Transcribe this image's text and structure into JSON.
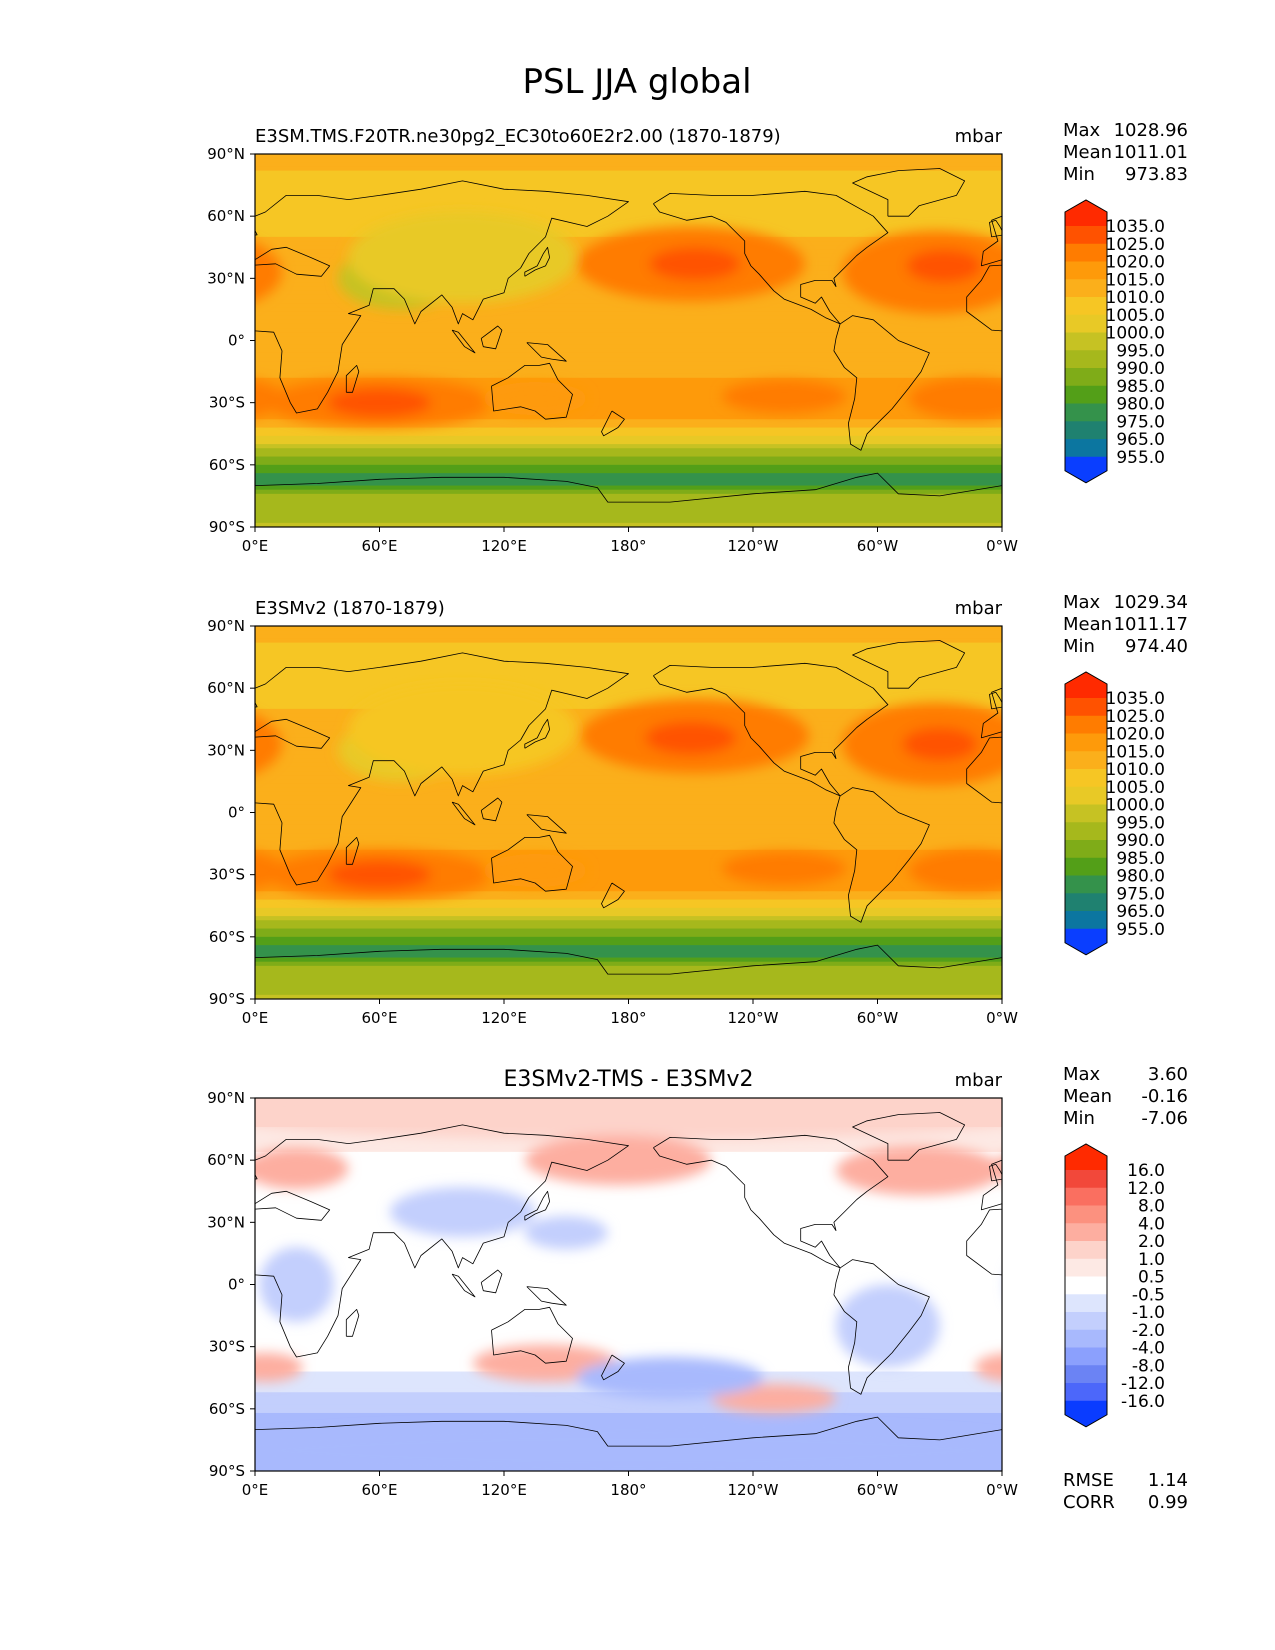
{
  "figure": {
    "title": "PSL JJA global"
  },
  "panels": [
    {
      "id": "test",
      "title_left": "E3SM.TMS.F20TR.ne30pg2_EC30to60E2r2.00 (1870-1879)",
      "title_center": "",
      "units": "mbar",
      "stats": [
        {
          "label": "Max",
          "value": "1028.96"
        },
        {
          "label": "Mean",
          "value": "1011.01"
        },
        {
          "label": "Min",
          "value": "973.83"
        }
      ],
      "colorbar": {
        "labels": [
          "1035.0",
          "1025.0",
          "1020.0",
          "1015.0",
          "1010.0",
          "1005.0",
          "1000.0",
          "995.0",
          "990.0",
          "985.0",
          "980.0",
          "975.0",
          "965.0",
          "955.0"
        ],
        "colors": [
          "#ff2a00",
          "#ff5200",
          "#ff7c00",
          "#fe9a0a",
          "#fbaf1b",
          "#f6c624",
          "#e8c926",
          "#c6c223",
          "#a6b81c",
          "#7fac18",
          "#539f18",
          "#34924b",
          "#1f8170",
          "#0c76a0",
          "#0b5cd1",
          "#0a3eff"
        ]
      },
      "regions": [
        {
          "name": "background",
          "lon": 180,
          "lat": 0,
          "rx": 200,
          "ry": 100,
          "value": 1012
        },
        {
          "name": "north-pacific-high",
          "lon": 210,
          "lat": 37,
          "rx": 55,
          "ry": 18,
          "value": 1021
        },
        {
          "name": "north-pacific-high-core",
          "lon": 212,
          "lat": 37,
          "rx": 22,
          "ry": 8,
          "value": 1026
        },
        {
          "name": "azores-high",
          "lon": 328,
          "lat": 33,
          "rx": 45,
          "ry": 20,
          "value": 1021
        },
        {
          "name": "azores-high-core",
          "lon": 332,
          "lat": 36,
          "rx": 18,
          "ry": 8,
          "value": 1026
        },
        {
          "name": "asian-low",
          "lon": 70,
          "lat": 30,
          "rx": 30,
          "ry": 15,
          "value": 998
        },
        {
          "name": "asian-interior",
          "lon": 100,
          "lat": 40,
          "rx": 55,
          "ry": 22,
          "value": 1004
        },
        {
          "name": "indian-ocean-high",
          "lon": 60,
          "lat": -30,
          "rx": 55,
          "ry": 12,
          "value": 1021
        },
        {
          "name": "indian-ocean-high-core",
          "lon": 60,
          "lat": -30,
          "rx": 25,
          "ry": 7,
          "value": 1025
        },
        {
          "name": "south-pacific-high",
          "lon": 255,
          "lat": -27,
          "rx": 30,
          "ry": 8,
          "value": 1020
        },
        {
          "name": "south-atlantic-high",
          "lon": 345,
          "lat": -28,
          "rx": 30,
          "ry": 10,
          "value": 1022
        },
        {
          "name": "australia-high",
          "lon": 135,
          "lat": -28,
          "rx": 25,
          "ry": 8,
          "value": 1019
        }
      ]
    },
    {
      "id": "reference",
      "title_left": "E3SMv2 (1870-1879)",
      "title_center": "",
      "units": "mbar",
      "stats": [
        {
          "label": "Max",
          "value": "1029.34"
        },
        {
          "label": "Mean",
          "value": "1011.17"
        },
        {
          "label": "Min",
          "value": "974.40"
        }
      ],
      "colorbar": {
        "labels": [
          "1035.0",
          "1025.0",
          "1020.0",
          "1015.0",
          "1010.0",
          "1005.0",
          "1000.0",
          "995.0",
          "990.0",
          "985.0",
          "980.0",
          "975.0",
          "965.0",
          "955.0"
        ],
        "colors": [
          "#ff2a00",
          "#ff5200",
          "#ff7c00",
          "#fe9a0a",
          "#fbaf1b",
          "#f6c624",
          "#e8c926",
          "#c6c223",
          "#a6b81c",
          "#7fac18",
          "#539f18",
          "#34924b",
          "#1f8170",
          "#0c76a0",
          "#0b5cd1",
          "#0a3eff"
        ]
      },
      "regions": [
        {
          "name": "background",
          "lon": 180,
          "lat": 0,
          "rx": 200,
          "ry": 100,
          "value": 1012
        },
        {
          "name": "north-pacific-high",
          "lon": 212,
          "lat": 37,
          "rx": 55,
          "ry": 18,
          "value": 1021
        },
        {
          "name": "north-pacific-high-core",
          "lon": 210,
          "lat": 36,
          "rx": 22,
          "ry": 8,
          "value": 1026
        },
        {
          "name": "azores-high",
          "lon": 328,
          "lat": 33,
          "rx": 45,
          "ry": 20,
          "value": 1021
        },
        {
          "name": "azores-high-core",
          "lon": 330,
          "lat": 33,
          "rx": 18,
          "ry": 8,
          "value": 1026
        },
        {
          "name": "asian-low",
          "lon": 70,
          "lat": 30,
          "rx": 30,
          "ry": 15,
          "value": 1001
        },
        {
          "name": "asian-interior",
          "lon": 100,
          "lat": 40,
          "rx": 55,
          "ry": 22,
          "value": 1006
        },
        {
          "name": "indian-ocean-high",
          "lon": 60,
          "lat": -30,
          "rx": 55,
          "ry": 12,
          "value": 1021
        },
        {
          "name": "indian-ocean-high-core",
          "lon": 60,
          "lat": -30,
          "rx": 25,
          "ry": 7,
          "value": 1025
        },
        {
          "name": "south-pacific-high",
          "lon": 255,
          "lat": -27,
          "rx": 30,
          "ry": 8,
          "value": 1020
        },
        {
          "name": "south-atlantic-high",
          "lon": 345,
          "lat": -28,
          "rx": 30,
          "ry": 10,
          "value": 1023
        },
        {
          "name": "australia-high",
          "lon": 135,
          "lat": -28,
          "rx": 25,
          "ry": 8,
          "value": 1019
        }
      ]
    },
    {
      "id": "difference",
      "title_left": "",
      "title_center": "E3SMv2-TMS - E3SMv2",
      "units": "mbar",
      "stats": [
        {
          "label": "Max",
          "value": "3.60"
        },
        {
          "label": "Mean",
          "value": "-0.16"
        },
        {
          "label": "Min",
          "value": "-7.06"
        }
      ],
      "extra_stats": [
        {
          "label": "RMSE",
          "value": "1.14"
        },
        {
          "label": "CORR",
          "value": "0.99"
        }
      ],
      "colorbar": {
        "labels": [
          "16.0",
          "12.0",
          "8.0",
          "4.0",
          "2.0",
          "1.0",
          "0.5",
          "-0.5",
          "-1.0",
          "-2.0",
          "-4.0",
          "-8.0",
          "-12.0",
          "-16.0"
        ],
        "colors": [
          "#ff2a00",
          "#f2483a",
          "#fa6f60",
          "#fc917f",
          "#fdaea0",
          "#fdd3ca",
          "#fde9e4",
          "#ffffff",
          "#dde5fd",
          "#c3cffd",
          "#a8b9fd",
          "#8ba0fd",
          "#6b83f4",
          "#4c67fa",
          "#2c4cfe",
          "#0a3cff"
        ]
      },
      "regions": [
        {
          "name": "background",
          "lon": 180,
          "lat": 0,
          "rx": 200,
          "ry": 100,
          "value": 0
        },
        {
          "name": "arctic-positive",
          "lon": 180,
          "lat": 82,
          "rx": 200,
          "ry": 12,
          "value": 1.5
        },
        {
          "name": "north-atlantic-positive",
          "lon": 320,
          "lat": 55,
          "rx": 40,
          "ry": 12,
          "value": 2.5
        },
        {
          "name": "europe-positive",
          "lon": 20,
          "lat": 56,
          "rx": 25,
          "ry": 10,
          "value": 2.5
        },
        {
          "name": "north-pacific-positive",
          "lon": 175,
          "lat": 60,
          "rx": 45,
          "ry": 12,
          "value": 2.5
        },
        {
          "name": "australia-positive",
          "lon": 140,
          "lat": -38,
          "rx": 35,
          "ry": 9,
          "value": 2.5
        },
        {
          "name": "south-pacific-positive",
          "lon": 250,
          "lat": -55,
          "rx": 30,
          "ry": 7,
          "value": 3.0
        },
        {
          "name": "south-africa-positive",
          "lon": 5,
          "lat": -40,
          "rx": 18,
          "ry": 7,
          "value": 2.0
        },
        {
          "name": "asia-negative",
          "lon": 100,
          "lat": 35,
          "rx": 35,
          "ry": 12,
          "value": -1.5
        },
        {
          "name": "west-pacific-negative",
          "lon": 150,
          "lat": 25,
          "rx": 20,
          "ry": 8,
          "value": -1.5
        },
        {
          "name": "africa-negative",
          "lon": 20,
          "lat": 0,
          "rx": 18,
          "ry": 18,
          "value": -1.2
        },
        {
          "name": "south-america-negative",
          "lon": 305,
          "lat": -20,
          "rx": 25,
          "ry": 20,
          "value": -1.5
        },
        {
          "name": "southern-ocean-negative",
          "lon": 200,
          "lat": -45,
          "rx": 45,
          "ry": 10,
          "value": -2.5
        },
        {
          "name": "antarctic-negative",
          "lon": 180,
          "lat": -80,
          "rx": 200,
          "ry": 12,
          "value": -3.0
        }
      ]
    }
  ],
  "axes": {
    "lat_ticks": [
      "90°N",
      "60°N",
      "30°N",
      "0°",
      "30°S",
      "60°S",
      "90°S"
    ],
    "lon_ticks": [
      "0°E",
      "60°E",
      "120°E",
      "180°",
      "120°W",
      "60°W",
      "0°W"
    ]
  }
}
